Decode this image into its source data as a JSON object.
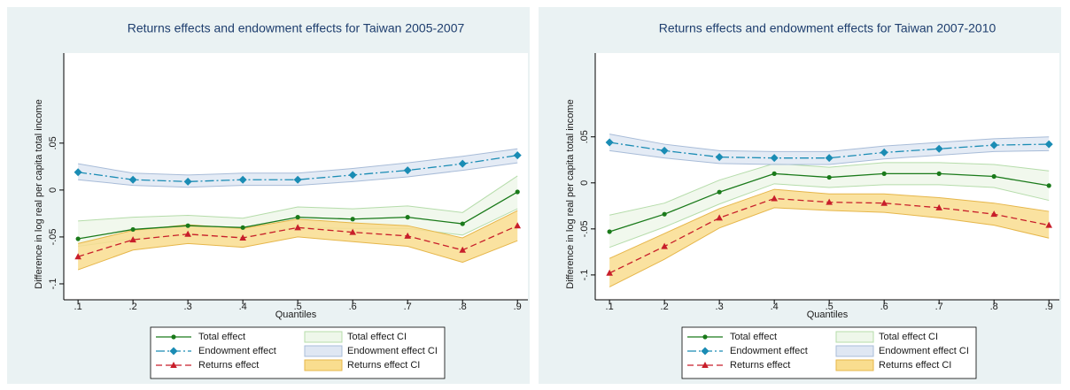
{
  "chart_data": [
    {
      "type": "line",
      "title": "Returns effects and endowment effects for Taiwan 2005-2007",
      "xlabel": "Quantiles",
      "ylabel": "Difference in log real per capita total income",
      "x": [
        0.1,
        0.2,
        0.3,
        0.4,
        0.5,
        0.6,
        0.7,
        0.8,
        0.9
      ],
      "xlim": [
        0.074,
        0.919
      ],
      "xticks": [
        {
          "value": 0.1,
          "label": ".1"
        },
        {
          "value": 0.2,
          "label": ".2"
        },
        {
          "value": 0.3,
          "label": ".3"
        },
        {
          "value": 0.4,
          "label": ".4"
        },
        {
          "value": 0.5,
          "label": ".5"
        },
        {
          "value": 0.6,
          "label": ".6"
        },
        {
          "value": 0.7,
          "label": ".7"
        },
        {
          "value": 0.8,
          "label": ".8"
        },
        {
          "value": 0.9,
          "label": ".9"
        }
      ],
      "ylim": [
        -0.117,
        0.146
      ],
      "yticks": [
        {
          "value": -0.1,
          "label": "-.1"
        },
        {
          "value": -0.05,
          "label": "-.05"
        },
        0,
        {
          "value": 0.05,
          "label": ".05"
        }
      ],
      "series": [
        {
          "name": "Total effect",
          "color": "#1a7a1a",
          "marker": "circle",
          "dash": "none",
          "values": [
            -0.052,
            -0.042,
            -0.038,
            -0.04,
            -0.029,
            -0.031,
            -0.029,
            -0.036,
            -0.002
          ]
        },
        {
          "name": "Endowment effect",
          "color": "#1a8cb4",
          "marker": "diamond",
          "dash": "10 3 2 3",
          "values": [
            0.019,
            0.011,
            0.009,
            0.011,
            0.011,
            0.016,
            0.021,
            0.028,
            0.037
          ]
        },
        {
          "name": "Returns effect",
          "color": "#c81e2a",
          "marker": "triangle",
          "dash": "7 4",
          "values": [
            -0.071,
            -0.053,
            -0.047,
            -0.051,
            -0.04,
            -0.045,
            -0.049,
            -0.064,
            -0.038
          ]
        }
      ],
      "bands": [
        {
          "name": "Total effect CI",
          "color": "#eef7ea",
          "edge_color": "#b5dcaa",
          "lower": [
            -0.06,
            -0.052,
            -0.048,
            -0.05,
            -0.04,
            -0.041,
            -0.041,
            -0.048,
            -0.02
          ],
          "upper": [
            -0.033,
            -0.029,
            -0.027,
            -0.03,
            -0.018,
            -0.02,
            -0.017,
            -0.024,
            0.015
          ]
        },
        {
          "name": "Endowment effect CI",
          "color": "#dfe7f3",
          "edge_color": "#a8bcd8",
          "lower": [
            0.011,
            0.005,
            0.003,
            0.005,
            0.005,
            0.009,
            0.014,
            0.021,
            0.029
          ],
          "upper": [
            0.028,
            0.018,
            0.016,
            0.018,
            0.018,
            0.023,
            0.029,
            0.036,
            0.044
          ]
        },
        {
          "name": "Returns effect CI",
          "color": "#f9dd8f",
          "edge_color": "#e6b64a",
          "lower": [
            -0.085,
            -0.064,
            -0.057,
            -0.061,
            -0.05,
            -0.055,
            -0.06,
            -0.077,
            -0.054
          ],
          "upper": [
            -0.057,
            -0.043,
            -0.037,
            -0.041,
            -0.031,
            -0.035,
            -0.038,
            -0.051,
            -0.022
          ]
        }
      ]
    },
    {
      "type": "line",
      "title": "Returns effects and endowment effects for Taiwan 2007-2010",
      "xlabel": "Quantiles",
      "ylabel": "Difference in log real per capita total income",
      "x": [
        0.1,
        0.2,
        0.3,
        0.4,
        0.5,
        0.6,
        0.7,
        0.8,
        0.9
      ],
      "xlim": [
        0.074,
        0.919
      ],
      "xticks": [
        {
          "value": 0.1,
          "label": ".1"
        },
        {
          "value": 0.2,
          "label": ".2"
        },
        {
          "value": 0.3,
          "label": ".3"
        },
        {
          "value": 0.4,
          "label": ".4"
        },
        {
          "value": 0.5,
          "label": ".5"
        },
        {
          "value": 0.6,
          "label": ".6"
        },
        {
          "value": 0.7,
          "label": ".7"
        },
        {
          "value": 0.8,
          "label": ".8"
        },
        {
          "value": 0.9,
          "label": ".9"
        }
      ],
      "ylim": [
        -0.127,
        0.141
      ],
      "yticks": [
        {
          "value": -0.1,
          "label": "-.1"
        },
        {
          "value": -0.05,
          "label": "-.05"
        },
        0,
        {
          "value": 0.05,
          "label": ".05"
        }
      ],
      "series": [
        {
          "name": "Total effect",
          "color": "#1a7a1a",
          "marker": "circle",
          "dash": "none",
          "values": [
            -0.053,
            -0.034,
            -0.01,
            0.01,
            0.006,
            0.01,
            0.01,
            0.007,
            -0.003
          ]
        },
        {
          "name": "Endowment effect",
          "color": "#1a8cb4",
          "marker": "diamond",
          "dash": "10 3 2 3",
          "values": [
            0.044,
            0.035,
            0.028,
            0.027,
            0.027,
            0.033,
            0.037,
            0.041,
            0.042
          ]
        },
        {
          "name": "Returns effect",
          "color": "#c81e2a",
          "marker": "triangle",
          "dash": "7 4",
          "values": [
            -0.098,
            -0.069,
            -0.038,
            -0.017,
            -0.021,
            -0.022,
            -0.027,
            -0.034,
            -0.046
          ]
        }
      ],
      "bands": [
        {
          "name": "Total effect CI",
          "color": "#eef7ea",
          "edge_color": "#b5dcaa",
          "lower": [
            -0.07,
            -0.048,
            -0.023,
            -0.001,
            -0.005,
            -0.002,
            -0.002,
            -0.005,
            -0.019
          ],
          "upper": [
            -0.035,
            -0.022,
            0.003,
            0.021,
            0.017,
            0.022,
            0.022,
            0.02,
            0.013
          ]
        },
        {
          "name": "Endowment effect CI",
          "color": "#dfe7f3",
          "edge_color": "#a8bcd8",
          "lower": [
            0.035,
            0.027,
            0.021,
            0.02,
            0.02,
            0.026,
            0.03,
            0.034,
            0.035
          ],
          "upper": [
            0.053,
            0.042,
            0.035,
            0.034,
            0.034,
            0.04,
            0.044,
            0.048,
            0.05
          ]
        },
        {
          "name": "Returns effect CI",
          "color": "#f9dd8f",
          "edge_color": "#e6b64a",
          "lower": [
            -0.113,
            -0.083,
            -0.049,
            -0.027,
            -0.03,
            -0.032,
            -0.038,
            -0.046,
            -0.06
          ],
          "upper": [
            -0.082,
            -0.055,
            -0.028,
            -0.007,
            -0.012,
            -0.012,
            -0.016,
            -0.022,
            -0.031
          ]
        }
      ]
    }
  ]
}
